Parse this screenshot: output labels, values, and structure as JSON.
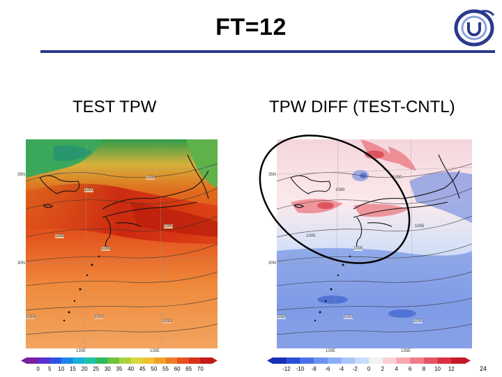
{
  "slide": {
    "title": "FT=12",
    "page_number": "24",
    "rule_color": "#2a3a8c"
  },
  "left_panel": {
    "label": "TEST  TPW",
    "colorbar_ticks": [
      "0",
      "5",
      "10",
      "15",
      "20",
      "25",
      "30",
      "35",
      "40",
      "45",
      "50",
      "55",
      "60",
      "65",
      "70"
    ],
    "isobar_labels": [
      "1000",
      "1000",
      "1005",
      "1005",
      "1005",
      "1010",
      "1010",
      "1010"
    ],
    "lat_labels": [
      "35N",
      "30N"
    ],
    "lon_labels": [
      "130E",
      "135E"
    ]
  },
  "right_panel": {
    "label": "TPW DIFF (TEST-CNTL)",
    "colorbar_ticks": [
      "-12",
      "-10",
      "-8",
      "-6",
      "-4",
      "-2",
      "0",
      "2",
      "4",
      "6",
      "8",
      "10",
      "12"
    ],
    "isobar_labels": [
      "1000",
      "1000",
      "1005",
      "1005",
      "1005",
      "1010",
      "1010",
      "1010"
    ],
    "lat_labels": [
      "35N",
      "30N"
    ],
    "lon_labels": [
      "130E",
      "135E"
    ],
    "highlight": "ellipse"
  },
  "logo": {
    "icon": "jma-logo-icon"
  }
}
